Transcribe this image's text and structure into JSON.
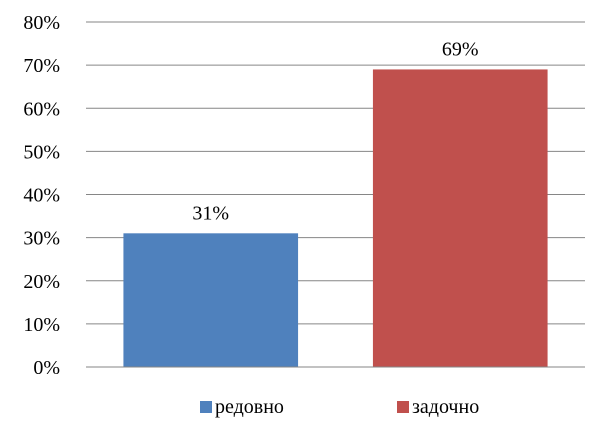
{
  "chart_data": {
    "type": "bar",
    "title": "",
    "categories": [
      "редовно",
      "задочно"
    ],
    "values": [
      31,
      69
    ],
    "data_labels": [
      "31%",
      "69%"
    ],
    "colors": [
      "#4f81bd",
      "#c0504d"
    ],
    "ylim": [
      0,
      80
    ],
    "ytick_labels": [
      "0%",
      "10%",
      "20%",
      "30%",
      "40%",
      "50%",
      "60%",
      "70%",
      "80%"
    ],
    "grid": true,
    "legend": {
      "placement": "bottom",
      "entries": [
        {
          "label": "редовно",
          "color": "#4f81bd"
        },
        {
          "label": "задочно",
          "color": "#c0504d"
        }
      ]
    }
  }
}
